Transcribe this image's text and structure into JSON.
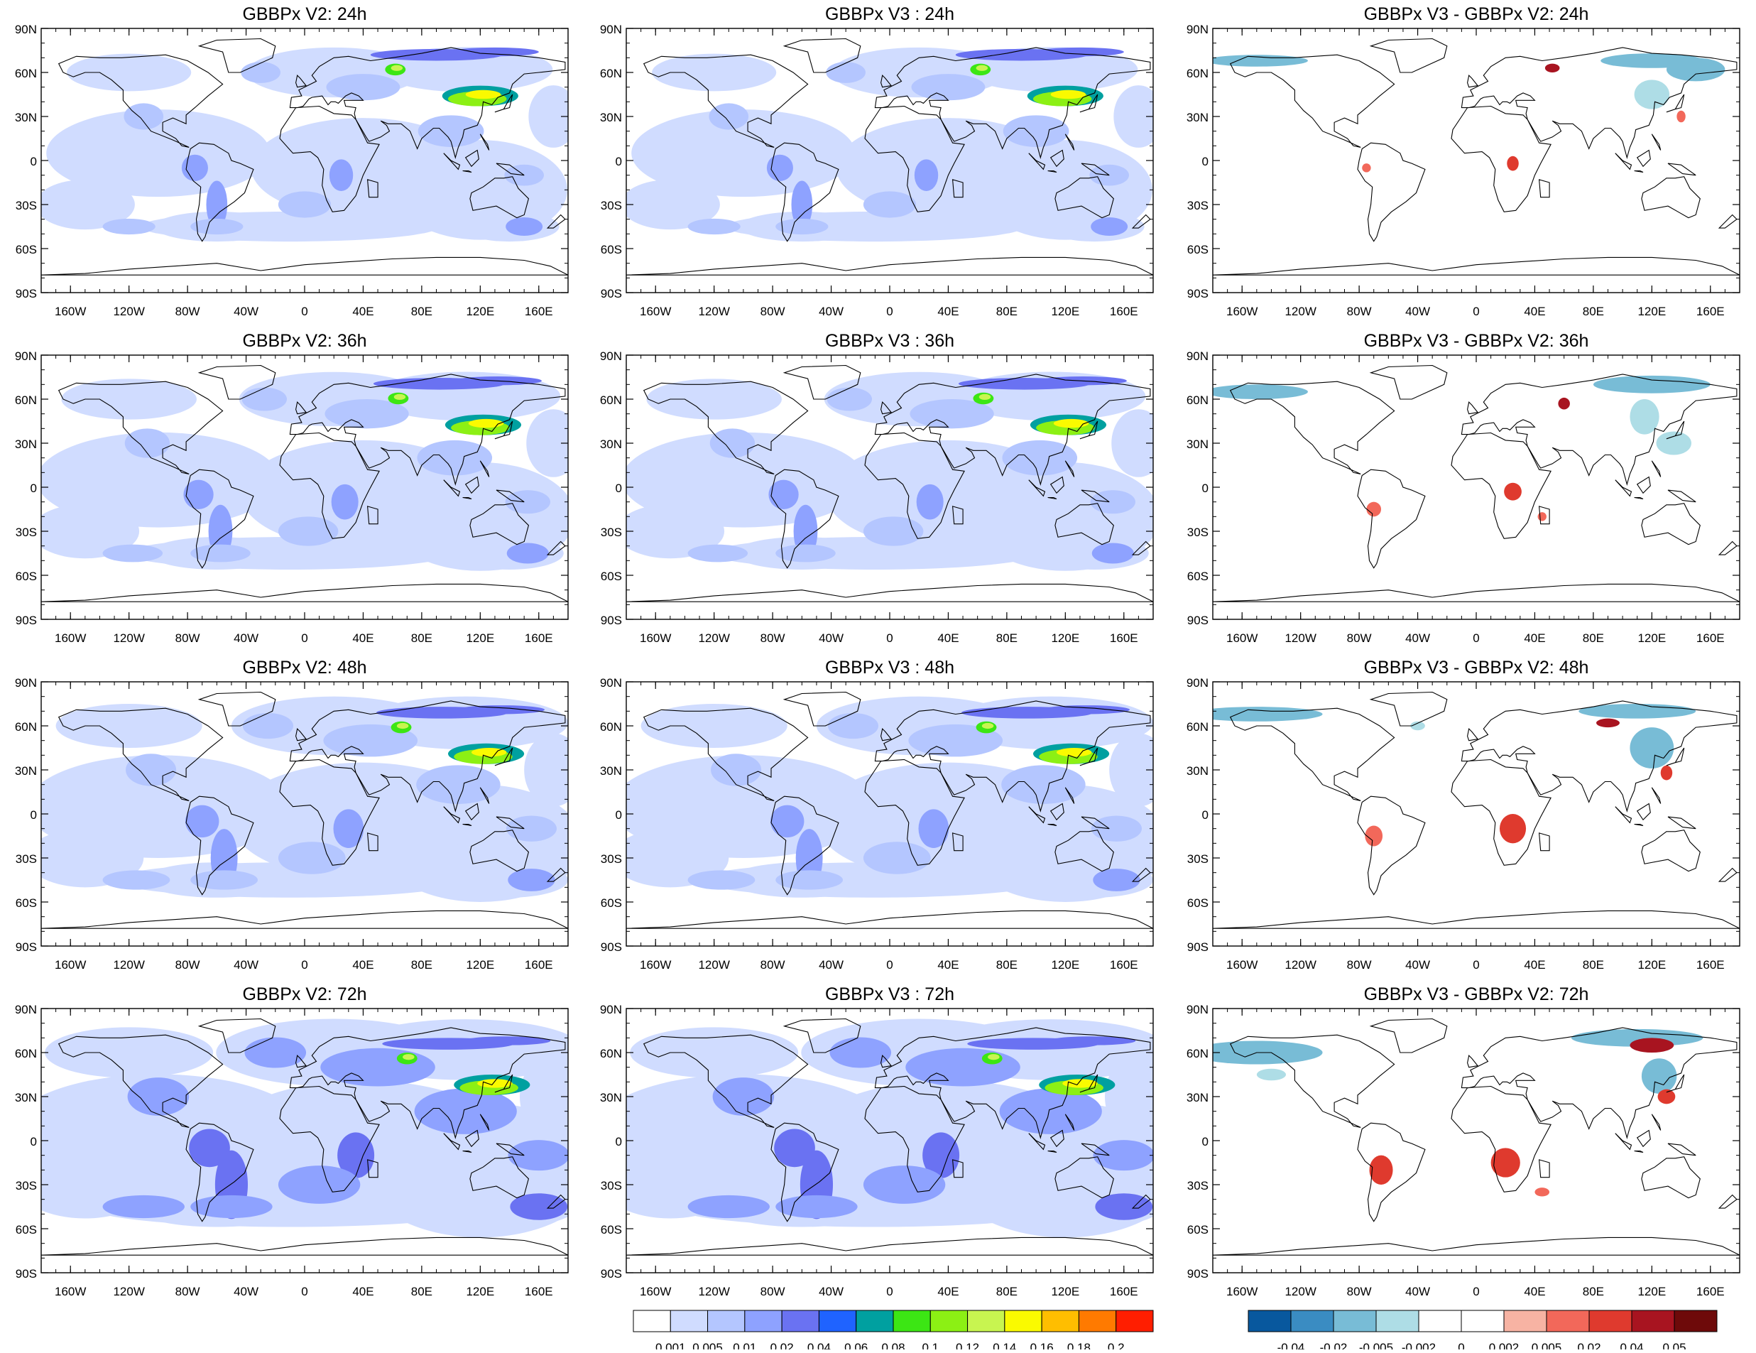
{
  "panels": [
    {
      "title": "GBBPx V2: 24h",
      "kind": "conc",
      "version": "v2",
      "hour": 24
    },
    {
      "title": "GBBPx V3 : 24h",
      "kind": "conc",
      "version": "v3",
      "hour": 24
    },
    {
      "title": "GBBPx V3 - GBBPx V2: 24h",
      "kind": "diff",
      "hour": 24
    },
    {
      "title": "GBBPx V2: 36h",
      "kind": "conc",
      "version": "v2",
      "hour": 36
    },
    {
      "title": "GBBPx V3 : 36h",
      "kind": "conc",
      "version": "v3",
      "hour": 36
    },
    {
      "title": "GBBPx V3 - GBBPx V2: 36h",
      "kind": "diff",
      "hour": 36
    },
    {
      "title": "GBBPx V2: 48h",
      "kind": "conc",
      "version": "v2",
      "hour": 48
    },
    {
      "title": "GBBPx V3 : 48h",
      "kind": "conc",
      "version": "v3",
      "hour": 48
    },
    {
      "title": "GBBPx V3 - GBBPx V2: 48h",
      "kind": "diff",
      "hour": 48
    },
    {
      "title": "GBBPx V2: 72h",
      "kind": "conc",
      "version": "v2",
      "hour": 72
    },
    {
      "title": "GBBPx V3 : 72h",
      "kind": "conc",
      "version": "v3",
      "hour": 72
    },
    {
      "title": "GBBPx V3 - GBBPx V2: 72h",
      "kind": "diff",
      "hour": 72
    }
  ],
  "axes": {
    "lat_labels": [
      "90N",
      "60N",
      "30N",
      "0",
      "30S",
      "60S",
      "90S"
    ],
    "lon_labels": [
      "160W",
      "120W",
      "80W",
      "40W",
      "0",
      "40E",
      "80E",
      "120E",
      "160E"
    ],
    "lon_values": [
      -160,
      -120,
      -80,
      -40,
      0,
      40,
      80,
      120,
      160
    ],
    "lat_values": [
      90,
      60,
      30,
      0,
      -30,
      -60,
      -90
    ],
    "lon_range": [
      -180,
      180
    ],
    "lat_range": [
      -90,
      90
    ]
  },
  "colorbars": {
    "concentration": {
      "labels": [
        "0.001",
        "0.005",
        "0.01",
        "0.02",
        "0.04",
        "0.06",
        "0.08",
        "0.1",
        "0.12",
        "0.14",
        "0.16",
        "0.18",
        "0.2"
      ],
      "colors": [
        "#ffffff",
        "#d0dcff",
        "#b4c6ff",
        "#8ea2ff",
        "#6a72f2",
        "#1f63ff",
        "#00a0a0",
        "#3ce614",
        "#8cf014",
        "#c8f550",
        "#fafa00",
        "#ffbe00",
        "#ff7a00",
        "#ff1e00"
      ]
    },
    "difference": {
      "labels": [
        "-0.04",
        "-0.02",
        "-0.005",
        "-0.002",
        "0",
        "0.002",
        "0.005",
        "0.02",
        "0.04",
        "0.05"
      ],
      "colors": [
        "#08589e",
        "#3a8cc2",
        "#78bcd6",
        "#aedde6",
        "#ffffff",
        "#ffffff",
        "#f7b3a3",
        "#f2685a",
        "#df3a2e",
        "#a81420",
        "#6e0a0a"
      ]
    }
  },
  "colors": {
    "land_outline": "#000000",
    "frame": "#000000"
  }
}
